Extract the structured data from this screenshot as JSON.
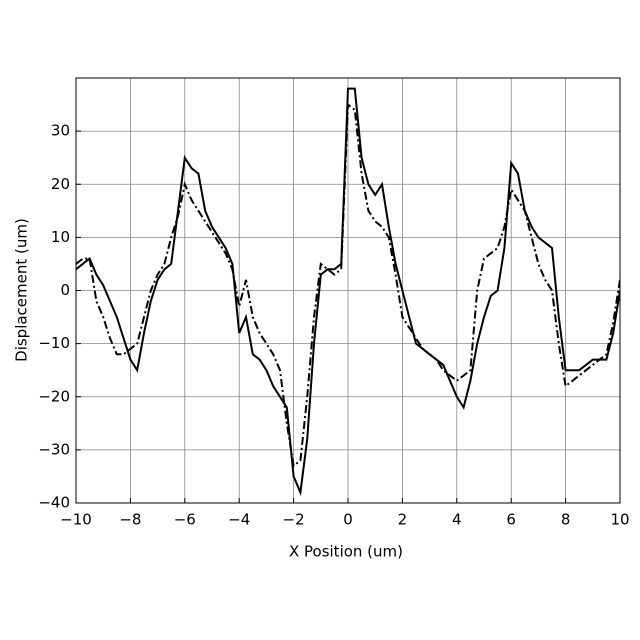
{
  "chart_data": {
    "type": "line",
    "x_label": "X Position (um)",
    "y_label": "Displacement (um)",
    "x": [
      -10,
      -9.75,
      -9.5,
      -9.25,
      -9,
      -8.75,
      -8.5,
      -8.25,
      -8,
      -7.75,
      -7.5,
      -7.25,
      -7,
      -6.75,
      -6.5,
      -6.25,
      -6,
      -5.75,
      -5.5,
      -5.25,
      -5,
      -4.75,
      -4.5,
      -4.25,
      -4,
      -3.75,
      -3.5,
      -3.25,
      -3,
      -2.75,
      -2.5,
      -2.25,
      -2,
      -1.75,
      -1.5,
      -1.25,
      -1,
      -0.75,
      -0.5,
      -0.25,
      0,
      0.25,
      0.5,
      0.75,
      1,
      1.25,
      1.5,
      1.75,
      2,
      2.25,
      2.5,
      2.75,
      3,
      3.25,
      3.5,
      3.75,
      4,
      4.25,
      4.5,
      4.75,
      5,
      5.25,
      5.5,
      5.75,
      6,
      6.25,
      6.5,
      6.75,
      7,
      7.25,
      7.5,
      7.75,
      8,
      8.25,
      8.5,
      8.75,
      9,
      9.25,
      9.5,
      9.75,
      10
    ],
    "series": [
      {
        "color": "#000000",
        "linestyle": "solid",
        "values": [
          4,
          5,
          6,
          3,
          1,
          -2,
          -5,
          -9,
          -13,
          -15,
          -8,
          -2,
          2,
          4,
          5,
          15,
          25,
          23,
          22,
          15,
          12,
          10,
          8,
          5,
          -8,
          -5,
          -12,
          -13,
          -15,
          -18,
          -20,
          -22,
          -35,
          -38,
          -28,
          -10,
          3,
          4,
          4,
          5,
          38,
          38,
          25,
          20,
          18,
          20,
          12,
          5,
          0,
          -5,
          -10,
          -11,
          -12,
          -13,
          -14,
          -17,
          -20,
          -22,
          -17,
          -10,
          -5,
          -1,
          0,
          8,
          24,
          22,
          15,
          12,
          10,
          9,
          8,
          -5,
          -15,
          -15,
          -15,
          -14,
          -13,
          -13,
          -13,
          -8,
          0
        ]
      },
      {
        "color": "#000000",
        "linestyle": "dashdot",
        "values": [
          5,
          6,
          6,
          -2,
          -5,
          -9,
          -12,
          -12,
          -11,
          -10,
          -5,
          0,
          3,
          5,
          10,
          14,
          20,
          17,
          15,
          13,
          11,
          9,
          7,
          4,
          -3,
          2,
          -5,
          -8,
          -10,
          -12,
          -15,
          -25,
          -33,
          -32,
          -20,
          -5,
          5,
          4,
          3,
          4,
          35,
          34,
          22,
          15,
          13,
          12,
          10,
          3,
          -5,
          -7,
          -9,
          -11,
          -12,
          -13,
          -15,
          -16,
          -17,
          -16,
          -15,
          0,
          6,
          7,
          8,
          12,
          19,
          17,
          15,
          10,
          5,
          2,
          0,
          -10,
          -18,
          -17,
          -16,
          -15,
          -14,
          -13,
          -12,
          -6,
          2
        ]
      }
    ],
    "xlim": [
      -10,
      10
    ],
    "xticks": [
      {
        "value": -10,
        "label": "−10"
      },
      {
        "value": -8,
        "label": "−8"
      },
      {
        "value": -6,
        "label": "−6"
      },
      {
        "value": -4,
        "label": "−4"
      },
      {
        "value": -2,
        "label": "−2"
      },
      0,
      2,
      4,
      6,
      8,
      10
    ],
    "ylim": [
      -40,
      40
    ],
    "yticks": [
      {
        "value": -40,
        "label": "−40"
      },
      {
        "value": -30,
        "label": "−30"
      },
      {
        "value": -20,
        "label": "−20"
      },
      {
        "value": -10,
        "label": "−10"
      },
      0,
      10,
      20,
      30
    ],
    "grid": true
  }
}
